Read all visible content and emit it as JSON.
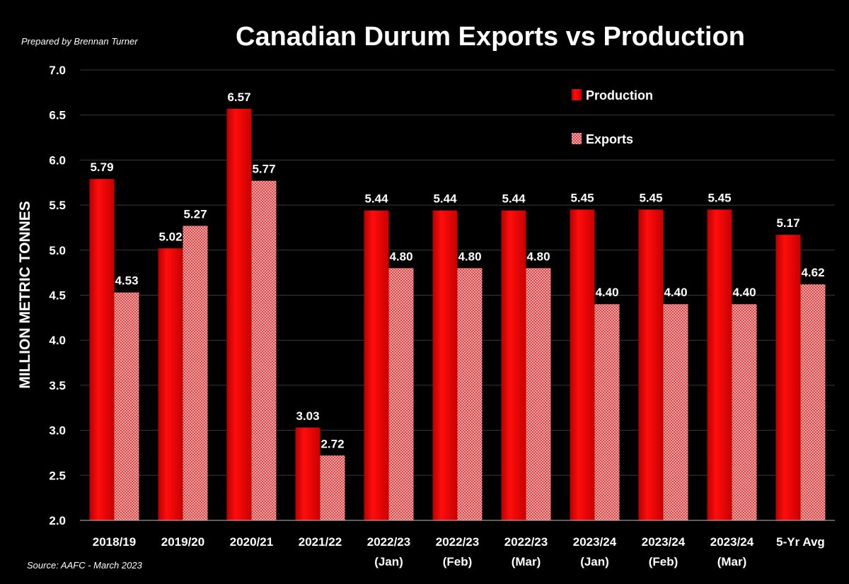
{
  "header": {
    "title": "Canadian Durum Exports vs Production",
    "credit": "Prepared by Brennan Turner"
  },
  "footer": {
    "source": "Source: AAFC - March 2023"
  },
  "colors": {
    "production": "#e60000",
    "exports": "#e88c8c",
    "background": "#000000"
  },
  "chart_data": {
    "type": "bar",
    "title": "Canadian Durum Exports vs Production",
    "xlabel": "",
    "ylabel": "MILLION METRIC TONNES",
    "ylim": [
      2.0,
      7.0
    ],
    "yticks": [
      "2.0",
      "2.5",
      "3.0",
      "3.5",
      "4.0",
      "4.5",
      "5.0",
      "5.5",
      "6.0",
      "6.5",
      "7.0"
    ],
    "grid": true,
    "legend_position": "top-right",
    "categories": [
      [
        "2018/19"
      ],
      [
        "2019/20"
      ],
      [
        "2020/21"
      ],
      [
        "2021/22"
      ],
      [
        "2022/23",
        "(Jan)"
      ],
      [
        "2022/23",
        "(Feb)"
      ],
      [
        "2022/23",
        "(Mar)"
      ],
      [
        "2023/24",
        "(Jan)"
      ],
      [
        "2023/24",
        "(Feb)"
      ],
      [
        "2023/24",
        "(Mar)"
      ],
      [
        "5-Yr Avg"
      ]
    ],
    "series": [
      {
        "name": "Production",
        "values": [
          5.79,
          5.02,
          6.57,
          3.03,
          5.44,
          5.44,
          5.44,
          5.45,
          5.45,
          5.45,
          5.17
        ],
        "labels": [
          "5.79",
          "5.02",
          "6.57",
          "3.03",
          "5.44",
          "5.44",
          "5.44",
          "5.45",
          "5.45",
          "5.45",
          "5.17"
        ]
      },
      {
        "name": "Exports",
        "values": [
          4.53,
          5.27,
          5.77,
          2.72,
          4.8,
          4.8,
          4.8,
          4.4,
          4.4,
          4.4,
          4.62
        ],
        "labels": [
          "4.53",
          "5.27",
          "5.77",
          "2.72",
          "4.80",
          "4.80",
          "4.80",
          "4.40",
          "4.40",
          "4.40",
          "4.62"
        ]
      }
    ]
  }
}
